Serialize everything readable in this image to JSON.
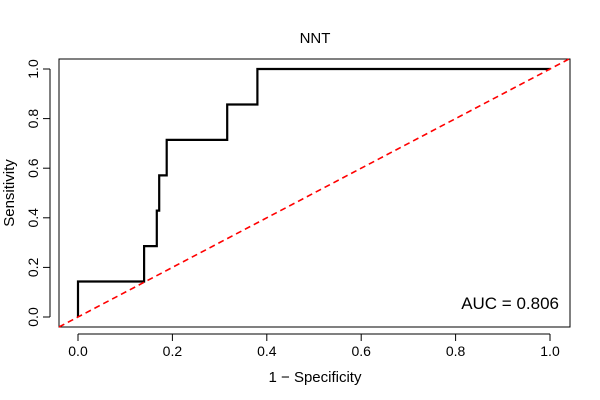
{
  "chart_data": {
    "type": "line",
    "title": "NNT",
    "xlabel": "1 − Specificity",
    "ylabel": "Sensitivity",
    "xlim": [
      0,
      1
    ],
    "ylim": [
      0,
      1
    ],
    "xticks": [
      "0.0",
      "0.2",
      "0.4",
      "0.6",
      "0.8",
      "1.0"
    ],
    "yticks": [
      "0.0",
      "0.2",
      "0.4",
      "0.6",
      "0.8",
      "1.0"
    ],
    "grid": false,
    "series": [
      {
        "style": "step",
        "color": "#000000",
        "points": [
          [
            0.0,
            0.0
          ],
          [
            0.0,
            0.143
          ],
          [
            0.14,
            0.143
          ],
          [
            0.14,
            0.286
          ],
          [
            0.167,
            0.286
          ],
          [
            0.167,
            0.429
          ],
          [
            0.172,
            0.429
          ],
          [
            0.172,
            0.571
          ],
          [
            0.188,
            0.571
          ],
          [
            0.188,
            0.714
          ],
          [
            0.316,
            0.714
          ],
          [
            0.316,
            0.857
          ],
          [
            0.38,
            0.857
          ],
          [
            0.38,
            1.0
          ],
          [
            1.0,
            1.0
          ]
        ]
      },
      {
        "style": "dashed",
        "color": "#ff0000",
        "points": [
          [
            0,
            0
          ],
          [
            1,
            1
          ]
        ]
      }
    ],
    "annotation": "AUC = 0.806"
  }
}
